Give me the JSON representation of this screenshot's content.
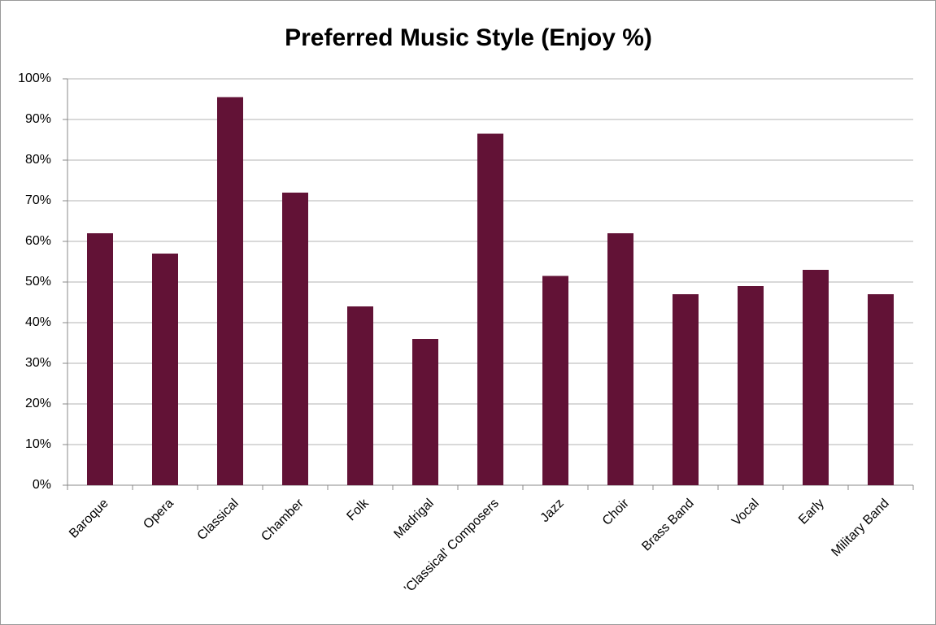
{
  "chart_data": {
    "type": "bar",
    "title": "Preferred Music Style (Enjoy %)",
    "categories": [
      "Baroque",
      "Opera",
      "Classical",
      "Chamber",
      "Folk",
      "Madrigal",
      "'Classical' Composers",
      "Jazz",
      "Choir",
      "Brass Band",
      "Vocal",
      "Early",
      "Military Band"
    ],
    "values": [
      62,
      57,
      95.5,
      72,
      44,
      36,
      86.5,
      51.5,
      62,
      47,
      49,
      53,
      47
    ],
    "color": "#621236",
    "ylim": [
      0,
      100
    ],
    "yticks": [
      {
        "value": 0,
        "label": "0%"
      },
      {
        "value": 10,
        "label": "10%"
      },
      {
        "value": 20,
        "label": "20%"
      },
      {
        "value": 30,
        "label": "30%"
      },
      {
        "value": 40,
        "label": "40%"
      },
      {
        "value": 50,
        "label": "50%"
      },
      {
        "value": 60,
        "label": "60%"
      },
      {
        "value": 70,
        "label": "70%"
      },
      {
        "value": 80,
        "label": "80%"
      },
      {
        "value": 90,
        "label": "90%"
      },
      {
        "value": 100,
        "label": "100%"
      }
    ],
    "grid": true
  }
}
